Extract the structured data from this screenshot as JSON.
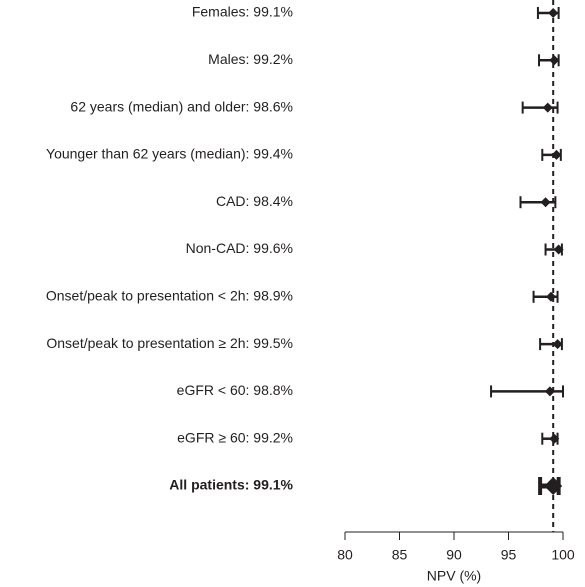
{
  "chart_data": {
    "type": "forest",
    "categories": [
      "Females: 99.1%",
      "Males: 99.2%",
      "62 years (median) and older: 98.6%",
      "Younger than 62 years (median): 99.4%",
      "CAD: 98.4%",
      "Non-CAD: 99.6%",
      "Onset/peak to presentation < 2h: 98.9%",
      "Onset/peak to presentation ≥ 2h: 99.5%",
      "eGFR < 60: 98.8%",
      "eGFR ≥ 60: 99.2%",
      "All patients: 99.1%"
    ],
    "values": [
      99.1,
      99.2,
      98.6,
      99.4,
      98.4,
      99.6,
      98.9,
      99.5,
      98.8,
      99.2,
      99.1
    ],
    "ci_low": [
      97.7,
      97.8,
      96.3,
      98.1,
      96.1,
      98.4,
      97.3,
      97.9,
      93.4,
      98.1,
      97.9
    ],
    "ci_high": [
      99.6,
      99.6,
      99.5,
      99.8,
      99.3,
      99.9,
      99.5,
      99.9,
      100.0,
      99.5,
      99.6
    ],
    "summary_row": 10,
    "reference_line": 99.1,
    "color": "#231f20",
    "xlim": [
      80,
      100
    ],
    "xticks": [
      80,
      85,
      90,
      95,
      100
    ],
    "xlabel": "NPV (%)"
  }
}
